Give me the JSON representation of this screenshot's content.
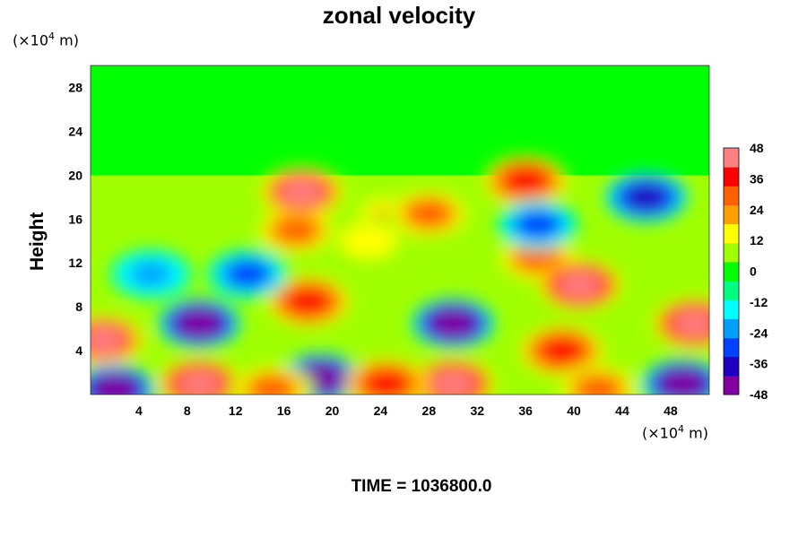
{
  "chart_data": {
    "type": "heatmap",
    "title": "zonal velocity",
    "ylabel": "Height",
    "xlabel": "",
    "x_unit": {
      "prefix": "(×10",
      "exp": "4",
      "suffix": " m)"
    },
    "y_unit": {
      "prefix": "(×10",
      "exp": "4",
      "suffix": " m)"
    },
    "xlim": [
      0,
      51.2
    ],
    "ylim": [
      0,
      30
    ],
    "xticks": [
      4,
      8,
      12,
      16,
      20,
      24,
      28,
      32,
      36,
      40,
      44,
      48
    ],
    "yticks": [
      4,
      8,
      12,
      16,
      20,
      24,
      28
    ],
    "colorbar": {
      "min": -48,
      "max": 48,
      "ticks": [
        48,
        36,
        24,
        12,
        0,
        -12,
        -24,
        -36,
        -48
      ],
      "colors": [
        "#8000a0",
        "#2000c0",
        "#0040ff",
        "#00a0ff",
        "#00ffff",
        "#00ff80",
        "#00ff00",
        "#a0ff00",
        "#ffff00",
        "#ffa000",
        "#ff6000",
        "#ff0000",
        "#ff8080"
      ]
    },
    "background_value": 0,
    "upper_layer_top_height": 20,
    "features": [
      {
        "x": 1,
        "y": 5,
        "value": 42
      },
      {
        "x": 9,
        "y": 6.5,
        "value": -46
      },
      {
        "x": 9,
        "y": 1,
        "value": 48
      },
      {
        "x": 18,
        "y": 8.5,
        "value": 40
      },
      {
        "x": 17,
        "y": 15,
        "value": 30
      },
      {
        "x": 17.5,
        "y": 18.5,
        "value": 42
      },
      {
        "x": 19,
        "y": 1.5,
        "value": -44
      },
      {
        "x": 25,
        "y": 16,
        "value": 22
      },
      {
        "x": 23,
        "y": 14,
        "value": 18
      },
      {
        "x": 28,
        "y": 16.5,
        "value": 28
      },
      {
        "x": 30,
        "y": 6.5,
        "value": -48
      },
      {
        "x": 30,
        "y": 1,
        "value": 46
      },
      {
        "x": 24.5,
        "y": 1,
        "value": 36
      },
      {
        "x": 36,
        "y": 19.5,
        "value": 34
      },
      {
        "x": 37,
        "y": 12.5,
        "value": 26
      },
      {
        "x": 39,
        "y": 4,
        "value": 38
      },
      {
        "x": 40.5,
        "y": 10,
        "value": 44
      },
      {
        "x": 37,
        "y": 15.5,
        "value": -28
      },
      {
        "x": 46,
        "y": 18,
        "value": -36
      },
      {
        "x": 50,
        "y": 6.5,
        "value": 44
      },
      {
        "x": 49,
        "y": 1,
        "value": -48
      },
      {
        "x": 42,
        "y": 0.5,
        "value": 30
      },
      {
        "x": 5,
        "y": 11,
        "value": -22
      },
      {
        "x": 2,
        "y": 0.5,
        "value": -44
      },
      {
        "x": 15,
        "y": 0.5,
        "value": 30
      },
      {
        "x": 13,
        "y": 11,
        "value": -26
      }
    ]
  },
  "footer": {
    "time_label": "TIME = 1036800.0"
  }
}
